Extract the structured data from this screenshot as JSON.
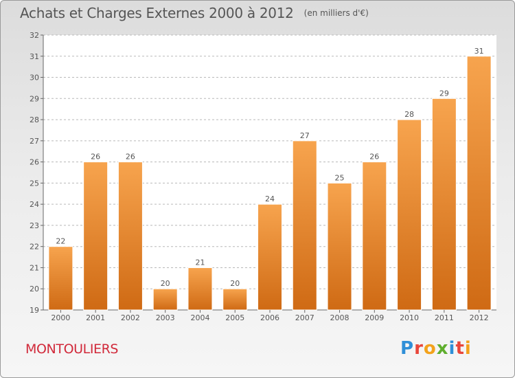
{
  "header": {
    "title": "Achats et Charges Externes 2000 à 2012",
    "subtitle": "(en milliers d'€)"
  },
  "footer": {
    "commune": "MONTOULIERS",
    "brand": "Proxiti",
    "brand_letters": [
      {
        "char": "P",
        "color": "#2f8fd8"
      },
      {
        "char": "r",
        "color": "#e8463a"
      },
      {
        "char": "o",
        "color": "#f3a21c"
      },
      {
        "char": "x",
        "color": "#5fae2e"
      },
      {
        "char": "i",
        "color": "#2f8fd8"
      },
      {
        "char": "t",
        "color": "#e8463a"
      },
      {
        "char": "i",
        "color": "#f3a21c"
      }
    ]
  },
  "colors": {
    "bar_light": "#f7a44e",
    "bar_dark": "#cf6a14",
    "grid": "#b8b8b8",
    "text": "#555555",
    "commune": "#d1293a"
  },
  "chart_data": {
    "type": "bar",
    "categories": [
      "2000",
      "2001",
      "2002",
      "2003",
      "2004",
      "2005",
      "2006",
      "2007",
      "2008",
      "2009",
      "2010",
      "2011",
      "2012"
    ],
    "values": [
      22,
      26,
      26,
      20,
      21,
      20,
      24,
      27,
      25,
      26,
      28,
      29,
      31
    ],
    "title": "Achats et Charges Externes 2000 à 2012",
    "xlabel": "",
    "ylabel": "",
    "ylim": [
      19,
      32
    ],
    "yticks": [
      19,
      20,
      21,
      22,
      23,
      24,
      25,
      26,
      27,
      28,
      29,
      30,
      31,
      32
    ],
    "grid": "horizontal dashed",
    "data_labels": true
  }
}
